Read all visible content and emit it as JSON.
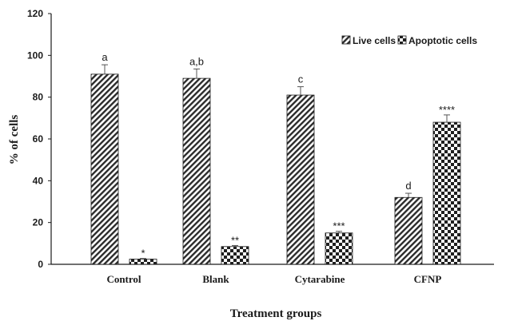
{
  "chart_data": {
    "type": "bar",
    "title": "",
    "xlabel": "Treatment groups",
    "ylabel": "% of cells",
    "categories": [
      "Control",
      "Blank",
      "Cytarabine",
      "CFNP"
    ],
    "ylim": [
      0,
      120
    ],
    "yticks": [
      0,
      20,
      40,
      60,
      80,
      100,
      120
    ],
    "grid": false,
    "legend_position": "top-right",
    "series": [
      {
        "name": "Live cells",
        "pattern": "diagonal-hatch",
        "values": [
          91,
          89,
          81,
          32
        ],
        "errors": [
          4.5,
          4.5,
          4,
          2
        ],
        "annotations": [
          "a",
          "a,b",
          "c",
          "d"
        ]
      },
      {
        "name": "Apoptotic cells",
        "pattern": "checkerboard",
        "values": [
          2.5,
          8.5,
          15,
          68
        ],
        "errors": [
          0.3,
          0.5,
          0.8,
          3.5
        ],
        "annotations": [
          "*",
          "**",
          "***",
          "****"
        ]
      }
    ]
  }
}
